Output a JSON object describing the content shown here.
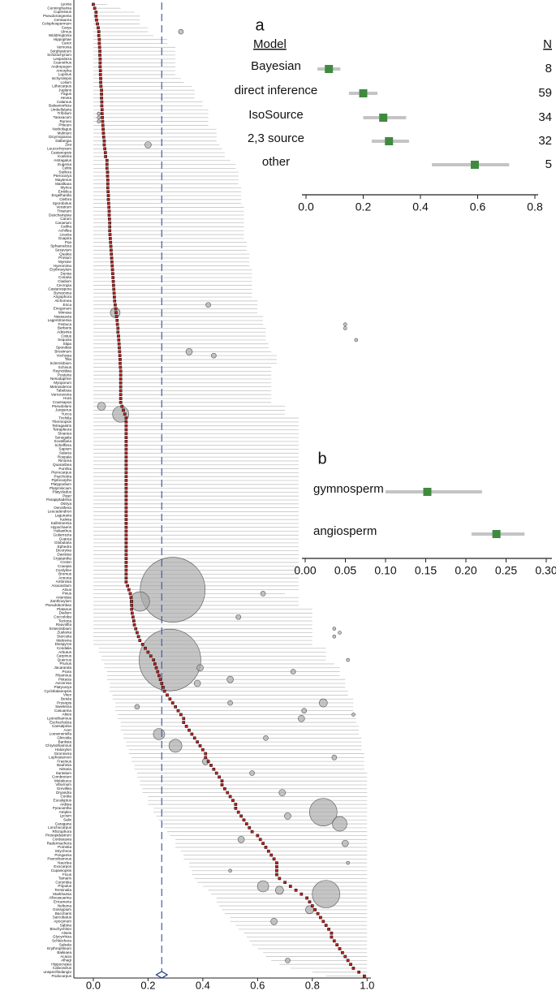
{
  "chart_data": [
    {
      "type": "forest",
      "categories": [
        "Lyonia",
        "Cunninghamia",
        "Cupressus",
        "Pseudoroegneria",
        "Centaurea",
        "Colophospermum",
        "Carya",
        "Ulmus",
        "Widdringtonia",
        "Hippophae",
        "Carex",
        "Vernonia",
        "Sorghastrum",
        "Schizachyrium",
        "Lespedeza",
        "Ceanothus",
        "Andropogon",
        "Amorpha",
        "Lupinus",
        "Ischyrolepis",
        "Lolium",
        "Lithocarpus",
        "Juglans",
        "Fagus",
        "Hevea",
        "Calamus",
        "Balsamorhiza",
        "Umbellularia",
        "Trifolium",
        "Taraxacum",
        "Rumex",
        "Phleum",
        "Nothofagus",
        "Mulinum",
        "Dicymopanax",
        "Dalbergia",
        "Zea",
        "Leucochrysum",
        "Castanopsis",
        "Koeleria",
        "Astragalus",
        "Eugenia",
        "Celtis",
        "Stellera",
        "Pterocarya",
        "Maytenus",
        "Manilkara",
        "Myrica",
        "Emblica",
        "Engelhardia",
        "Clethra",
        "Sporobolus",
        "Veratrum",
        "Trisetum",
        "Deschampsia",
        "Carum",
        "Canarium",
        "Caltha",
        "Achillea",
        "Licania",
        "Guapira",
        "Poa",
        "Sphaeralcea",
        "Sesuvium",
        "Qualea",
        "Protium",
        "Myrsine",
        "Hyeronima",
        "Erythroxylum",
        "Duroia",
        "Coriaria",
        "Cladium",
        "Cecropia",
        "Castanospora",
        "Byrsonima",
        "Angophora",
        "Alchornea",
        "Erica",
        "Eriogonum",
        "Mimosa",
        "Nassauvia",
        "Lagerstroemia",
        "Festuca",
        "Berberis",
        "Adesmia",
        "Cistus",
        "Sequoia",
        "Stipa",
        "Spondias",
        "Brosimum",
        "Vochysia",
        "Tilia",
        "Sclerolobium",
        "Schinus",
        "Reynoldsia",
        "Pouteria",
        "Nesodaphne",
        "Myoporum",
        "Metrosideros",
        "Tabebuia",
        "Vancouveria",
        "Hura",
        "Coussapoa",
        "Pseudolarix",
        "Juniperus",
        "Yucca",
        "Trichilia",
        "Thermopsis",
        "Tetragastris",
        "Tetrapleura",
        "Sloanea",
        "Senegalia",
        "Scutellaria",
        "Schefflera",
        "Sapium",
        "Salacia",
        "Roupala",
        "Rinorea",
        "Quararibea",
        "Purshia",
        "Pterocarpus",
        "Psychotria",
        "Piptocarpha",
        "Platypodium",
        "Platymiscium",
        "Platycladus",
        "Piper",
        "Parapiptadenia",
        "Ostrya",
        "Oenothera",
        "Leucadendron",
        "Lagunaria",
        "Kalmia",
        "Kallstroemia",
        "Hypochaeris",
        "Helianthus",
        "Gutierrezia",
        "Guarea",
        "Globularia",
        "Ephedra",
        "Dicorynia",
        "Daviesia",
        "Cryptantha",
        "Croton",
        "Couepia",
        "Cordyline",
        "Bromus",
        "Annona",
        "Ambrosia",
        "Anacardium",
        "Alnus",
        "Pinus",
        "Artemisia",
        "Zanthoxylum",
        "Pseudobombax",
        "Platanus",
        "Dialium",
        "Coccoloba",
        "Tectona",
        "Rauvolfia",
        "Enterolobium",
        "Zuelania",
        "Sterculia",
        "Malosma",
        "Diospyros",
        "Condalia",
        "Arbutus",
        "Carpinus",
        "Quercus",
        "Prunus",
        "Jacaranda",
        "Picea",
        "Rhamnus",
        "Pistacia",
        "Avicennia",
        "Platycarya",
        "Cyclobalanopsis",
        "Vitex",
        "Betula",
        "Prosopis",
        "Swietenia",
        "Casuarina",
        "Abies",
        "Lyonothamnus",
        "Eschscholzia",
        "Caesalpinia",
        "Acer",
        "Loeseneriella",
        "Gliricidia",
        "Banksia",
        "Chrysothamnus",
        "Haloxylon",
        "Gironniera",
        "Lophostemon",
        "Fraxinus",
        "Bauhinia",
        "Nitraria",
        "Santalum",
        "Combretum",
        "Melaleuca",
        "Viburnum",
        "Grevillea",
        "Dryandra",
        "Cordia",
        "Eucalyptus",
        "Ardisia",
        "Pyracantha",
        "Atriplex",
        "Lycium",
        "Salix",
        "Caragana",
        "Lonchocarpus",
        "Rhizophora",
        "Prosopidastrum",
        "Cordeauxia",
        "Radermachera",
        "Pometia",
        "Strychnos",
        "Pongamia",
        "Psorothamnus",
        "Nauclea",
        "Exocarpos",
        "Cupaniopsis",
        "Ficus",
        "Tamarix",
        "Corymbia",
        "Populus",
        "Terminalia",
        "Markhamia",
        "Allocasuarina",
        "Ericameria",
        "Neltuma",
        "Gossypium",
        "Baccharis",
        "Sarcobatus",
        "Apocynum",
        "Sabina",
        "Brachychiton",
        "Alseis",
        "Glycyrrhiza",
        "Schleichera",
        "Salsola",
        "Erythrophleum",
        "Baikiaea",
        "Acacia",
        "Alhagi",
        "Hippocratea",
        "Calocedrus",
        "unspecifiedangio",
        "Podocarpus"
      ],
      "values": [
        0,
        0.005,
        0.01,
        0.01,
        0.012,
        0.015,
        0.018,
        0.02,
        0.02,
        0.022,
        0.022,
        0.023,
        0.024,
        0.024,
        0.025,
        0.025,
        0.025,
        0.026,
        0.026,
        0.027,
        0.027,
        0.028,
        0.03,
        0.03,
        0.03,
        0.031,
        0.031,
        0.032,
        0.032,
        0.033,
        0.034,
        0.035,
        0.036,
        0.037,
        0.038,
        0.04,
        0.04,
        0.042,
        0.044,
        0.045,
        0.05,
        0.05,
        0.05,
        0.052,
        0.052,
        0.053,
        0.053,
        0.053,
        0.054,
        0.055,
        0.055,
        0.056,
        0.057,
        0.058,
        0.058,
        0.059,
        0.06,
        0.06,
        0.06,
        0.061,
        0.062,
        0.063,
        0.064,
        0.065,
        0.066,
        0.067,
        0.068,
        0.069,
        0.07,
        0.071,
        0.072,
        0.073,
        0.074,
        0.075,
        0.076,
        0.077,
        0.078,
        0.08,
        0.082,
        0.083,
        0.085,
        0.087,
        0.088,
        0.09,
        0.09,
        0.092,
        0.093,
        0.094,
        0.095,
        0.096,
        0.097,
        0.098,
        0.098,
        0.099,
        0.1,
        0.1,
        0.1,
        0.1,
        0.1,
        0.1,
        0.1,
        0.1,
        0.1,
        0.105,
        0.11,
        0.115,
        0.12,
        0.12,
        0.12,
        0.12,
        0.12,
        0.12,
        0.12,
        0.12,
        0.12,
        0.12,
        0.12,
        0.12,
        0.12,
        0.12,
        0.12,
        0.12,
        0.12,
        0.12,
        0.12,
        0.12,
        0.12,
        0.12,
        0.12,
        0.12,
        0.12,
        0.12,
        0.12,
        0.12,
        0.12,
        0.12,
        0.12,
        0.12,
        0.12,
        0.12,
        0.12,
        0.12,
        0.12,
        0.12,
        0.12,
        0.12,
        0.12,
        0.12,
        0.12,
        0.125,
        0.13,
        0.135,
        0.138,
        0.14,
        0.14,
        0.14,
        0.142,
        0.145,
        0.148,
        0.15,
        0.155,
        0.16,
        0.165,
        0.17,
        0.18,
        0.19,
        0.2,
        0.21,
        0.22,
        0.225,
        0.23,
        0.235,
        0.24,
        0.245,
        0.25,
        0.255,
        0.26,
        0.27,
        0.28,
        0.29,
        0.3,
        0.31,
        0.32,
        0.33,
        0.33,
        0.34,
        0.35,
        0.36,
        0.37,
        0.38,
        0.39,
        0.4,
        0.41,
        0.41,
        0.42,
        0.43,
        0.44,
        0.45,
        0.46,
        0.47,
        0.47,
        0.48,
        0.49,
        0.5,
        0.51,
        0.52,
        0.52,
        0.53,
        0.54,
        0.55,
        0.56,
        0.57,
        0.58,
        0.6,
        0.61,
        0.62,
        0.63,
        0.64,
        0.65,
        0.66,
        0.67,
        0.67,
        0.67,
        0.67,
        0.68,
        0.7,
        0.72,
        0.74,
        0.76,
        0.78,
        0.79,
        0.8,
        0.81,
        0.82,
        0.83,
        0.84,
        0.85,
        0.86,
        0.87,
        0.87,
        0.88,
        0.89,
        0.9,
        0.91,
        0.92,
        0.93,
        0.94,
        0.95,
        0.97,
        0.99
      ],
      "lower": [
        0,
        0,
        0,
        0,
        0,
        0,
        0,
        0,
        0,
        0,
        0,
        0,
        0,
        0,
        0,
        0,
        0,
        0,
        0,
        0,
        0,
        0,
        0,
        0,
        0,
        0,
        0,
        0,
        0,
        0,
        0,
        0,
        0,
        0,
        0,
        0,
        0,
        0,
        0,
        0,
        0,
        0,
        0,
        0,
        0,
        0,
        0,
        0,
        0,
        0,
        0,
        0,
        0,
        0,
        0,
        0,
        0,
        0,
        0,
        0,
        0,
        0,
        0,
        0,
        0,
        0,
        0,
        0,
        0,
        0,
        0,
        0,
        0,
        0,
        0,
        0,
        0,
        0,
        0,
        0,
        0,
        0,
        0,
        0,
        0,
        0,
        0,
        0,
        0,
        0,
        0,
        0,
        0,
        0,
        0,
        0,
        0,
        0,
        0,
        0,
        0,
        0,
        0,
        0,
        0,
        0,
        0,
        0,
        0,
        0,
        0,
        0,
        0,
        0,
        0,
        0,
        0,
        0,
        0,
        0,
        0,
        0,
        0,
        0,
        0,
        0,
        0,
        0,
        0,
        0,
        0,
        0,
        0,
        0,
        0,
        0,
        0,
        0,
        0,
        0,
        0,
        0,
        0,
        0,
        0,
        0,
        0,
        0,
        0,
        0,
        0,
        0,
        0,
        0,
        0,
        0,
        0,
        0,
        0,
        0,
        0,
        0,
        0,
        0,
        0,
        0.02,
        0.02,
        0.03,
        0.03,
        0.04,
        0.04,
        0.05,
        0.05,
        0.05,
        0.06,
        0.06,
        0.06,
        0.07,
        0.07,
        0.08,
        0.08,
        0.08,
        0.09,
        0.09,
        0.1,
        0.1,
        0.1,
        0.11,
        0.11,
        0.12,
        0.12,
        0.13,
        0.13,
        0.14,
        0.14,
        0.15,
        0.15,
        0.16,
        0.16,
        0.17,
        0.17,
        0.18,
        0.18,
        0.2,
        0.2,
        0.2,
        0.22,
        0.22,
        0.23,
        0.24,
        0.25,
        0.26,
        0.27,
        0.28,
        0.3,
        0.3,
        0.3,
        0.32,
        0.33,
        0.33,
        0.35,
        0.35,
        0.36,
        0.36,
        0.37,
        0.38,
        0.4,
        0.42,
        0.43,
        0.45,
        0.45,
        0.46,
        0.47,
        0.48,
        0.5,
        0.5,
        0.52,
        0.53,
        0.55,
        0.56,
        0.57,
        0.58,
        0.6,
        0.62,
        0.63,
        0.65,
        0.68,
        0.72,
        0.8,
        0.85
      ],
      "upper": [
        0.05,
        0.1,
        0.15,
        0.17,
        0.17,
        0.17,
        0.2,
        0.2,
        0.22,
        0.27,
        0.27,
        0.3,
        0.3,
        0.3,
        0.3,
        0.3,
        0.3,
        0.3,
        0.3,
        0.32,
        0.33,
        0.36,
        0.37,
        0.37,
        0.37,
        0.4,
        0.4,
        0.42,
        0.42,
        0.42,
        0.42,
        0.42,
        0.45,
        0.45,
        0.45,
        0.45,
        0.46,
        0.47,
        0.48,
        0.48,
        0.5,
        0.52,
        0.52,
        0.53,
        0.53,
        0.53,
        0.53,
        0.54,
        0.54,
        0.54,
        0.54,
        0.54,
        0.55,
        0.55,
        0.55,
        0.55,
        0.55,
        0.55,
        0.55,
        0.55,
        0.55,
        0.56,
        0.56,
        0.56,
        0.57,
        0.57,
        0.57,
        0.57,
        0.58,
        0.58,
        0.58,
        0.58,
        0.58,
        0.58,
        0.58,
        0.58,
        0.6,
        0.6,
        0.6,
        0.6,
        0.62,
        0.62,
        0.62,
        0.63,
        0.63,
        0.63,
        0.63,
        0.64,
        0.64,
        0.65,
        0.67,
        0.67,
        0.67,
        0.65,
        0.65,
        0.65,
        0.65,
        0.65,
        0.65,
        0.65,
        0.65,
        0.65,
        0.65,
        0.7,
        0.7,
        0.7,
        0.75,
        0.75,
        0.75,
        0.75,
        0.75,
        0.75,
        0.75,
        0.75,
        0.75,
        0.75,
        0.75,
        0.75,
        0.75,
        0.75,
        0.75,
        0.75,
        0.75,
        0.75,
        0.75,
        0.75,
        0.75,
        0.75,
        0.75,
        0.75,
        0.75,
        0.75,
        0.75,
        0.75,
        0.75,
        0.75,
        0.75,
        0.75,
        0.75,
        0.75,
        0.75,
        0.75,
        0.75,
        0.75,
        0.75,
        0.75,
        0.75,
        0.75,
        0.75,
        0.75,
        0.75,
        0.7,
        0.75,
        0.75,
        0.75,
        0.8,
        0.8,
        0.8,
        0.8,
        0.8,
        0.8,
        0.8,
        0.8,
        0.8,
        0.8,
        0.85,
        0.85,
        0.85,
        0.85,
        0.88,
        0.9,
        0.9,
        0.9,
        0.92,
        0.92,
        0.92,
        0.93,
        0.93,
        0.95,
        0.95,
        0.95,
        0.95,
        0.96,
        0.96,
        0.96,
        0.97,
        0.97,
        0.97,
        0.98,
        0.98,
        0.98,
        0.98,
        0.99,
        0.99,
        0.99,
        0.99,
        0.99,
        1,
        1,
        1,
        1,
        1,
        1,
        1,
        1,
        1,
        1,
        1,
        1,
        1,
        1,
        1,
        1,
        1,
        1,
        1,
        1,
        1,
        1,
        1,
        1,
        1,
        1,
        1,
        1,
        1,
        1,
        1,
        1,
        1,
        1,
        1,
        1,
        1,
        1,
        1,
        1,
        1,
        1,
        1,
        1,
        1,
        1,
        1,
        1,
        1,
        1,
        1,
        1,
        1
      ],
      "bubbles": {
        "x": [
          0.2,
          0.32,
          0.02,
          0.02,
          0.02,
          0.42,
          0.08,
          0.92,
          0.92,
          0.96,
          0.35,
          0.44,
          0.03,
          0.1,
          0.29,
          0.17,
          0.62,
          0.53,
          0.88,
          0.9,
          0.88,
          0.28,
          0.39,
          0.5,
          0.38,
          0.73,
          0.93,
          0.16,
          0.77,
          0.76,
          0.95,
          0.5,
          0.84,
          0.24,
          0.3,
          0.63,
          0.88,
          0.58,
          0.41,
          0.69,
          0.84,
          0.9,
          0.71,
          0.54,
          0.92,
          0.62,
          0.68,
          0.85,
          0.79,
          0.66,
          0.71,
          0.93,
          0.5
        ],
        "row": [
          36,
          7,
          28,
          29,
          30,
          77,
          79,
          82,
          83,
          86,
          89,
          90,
          103,
          105,
          150,
          153,
          151,
          157,
          160,
          161,
          162,
          168,
          170,
          173,
          174,
          171,
          168,
          180,
          181,
          183,
          182,
          179,
          179,
          187,
          190,
          188,
          193,
          197,
          194,
          202,
          207,
          210,
          208,
          214,
          215,
          226,
          227,
          228,
          232,
          235,
          245,
          220,
          222
        ],
        "weight": [
          16,
          9,
          4,
          4,
          4,
          9,
          36,
          4,
          4,
          4,
          16,
          9,
          25,
          100,
          1600,
          144,
          9,
          9,
          4,
          4,
          4,
          1444,
          16,
          16,
          16,
          9,
          4,
          9,
          9,
          16,
          4,
          9,
          25,
          49,
          64,
          9,
          9,
          9,
          16,
          16,
          289,
          81,
          16,
          16,
          16,
          49,
          25,
          289,
          25,
          16,
          9,
          4,
          4
        ]
      },
      "reference": {
        "value": 0.25,
        "lower": 0.23,
        "upper": 0.27
      },
      "xlim": [
        -0.071,
        1.014
      ],
      "xticks": [
        {
          "value": 0,
          "label": "0.0"
        },
        0.2,
        0.4,
        0.6,
        0.8,
        {
          "value": 1,
          "label": "1.0"
        }
      ],
      "color": "#b22222",
      "ci_color": "#c4c4c4",
      "bubble_color": "#a6a6a6",
      "reference_color": "#3d5fa8"
    },
    {
      "type": "forest",
      "panel_label": "a",
      "column_headers": [
        "Model",
        "N"
      ],
      "categories": [
        "Bayesian",
        "direct inference",
        "IsoSource",
        "2,3 source",
        "other"
      ],
      "values": [
        0.08,
        0.2,
        0.27,
        0.29,
        0.59
      ],
      "lower": [
        0.04,
        0.15,
        0.2,
        0.23,
        0.44
      ],
      "upper": [
        0.12,
        0.25,
        0.35,
        0.36,
        0.71
      ],
      "n": [
        8,
        59,
        34,
        32,
        5
      ],
      "xlim": [
        0,
        0.8
      ],
      "xticks": [
        {
          "value": 0,
          "label": "0.0"
        },
        0.2,
        0.4,
        0.6,
        0.8
      ],
      "color": "#3f8a3f",
      "ci_color": "#c4c4c4"
    },
    {
      "type": "forest",
      "panel_label": "b",
      "categories": [
        "gymnosperm",
        "angiosperm"
      ],
      "values": [
        0.152,
        0.238
      ],
      "lower": [
        0.1,
        0.207
      ],
      "upper": [
        0.22,
        0.273
      ],
      "xlim": [
        0,
        0.3
      ],
      "xticks": [
        {
          "value": 0,
          "label": "0.00"
        },
        0.05,
        {
          "value": 0.1,
          "label": "0.10"
        },
        0.15,
        {
          "value": 0.2,
          "label": "0.20"
        },
        0.25,
        {
          "value": 0.3,
          "label": "0.30"
        }
      ],
      "color": "#3f8a3f",
      "ci_color": "#c4c4c4"
    }
  ]
}
